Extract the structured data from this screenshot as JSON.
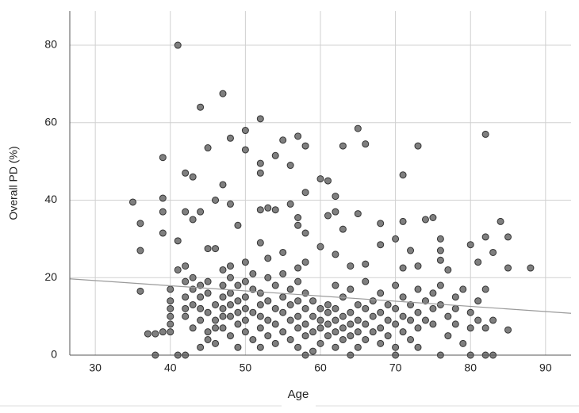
{
  "chart_data": {
    "type": "scatter",
    "x_label": "Age",
    "y_label": "Overall PD (%)",
    "color": "#7f7f7f",
    "edge_color": "#333333",
    "grid": true,
    "xlim": [
      26.6,
      93.4
    ],
    "ylim": [
      0,
      88.8
    ],
    "xticks": [
      30,
      40,
      50,
      60,
      70,
      80,
      90
    ],
    "yticks": [
      0,
      20,
      40,
      60,
      80
    ],
    "fit_line": {
      "color": "#9a9a9a",
      "x": [
        26.6,
        93.4
      ],
      "y": [
        19.7,
        10.8
      ]
    },
    "x": [
      41,
      47,
      44,
      52,
      50,
      65,
      82,
      57,
      48,
      55,
      45,
      50,
      58,
      63,
      66,
      73,
      54,
      39,
      52,
      56,
      42,
      43,
      52,
      71,
      60,
      61,
      47,
      58,
      62,
      39,
      46,
      35,
      48,
      56,
      53,
      54,
      52,
      42,
      39,
      44,
      62,
      65,
      61,
      57,
      74,
      75,
      43,
      84,
      36,
      68,
      71,
      49,
      57,
      63,
      58,
      39,
      85,
      70,
      76,
      82,
      41,
      52,
      80,
      45,
      60,
      68,
      36,
      46,
      72,
      76,
      55,
      83,
      62,
      41,
      42,
      48,
      50,
      58,
      53,
      57,
      88,
      85,
      71,
      81,
      77,
      76,
      64,
      66,
      73,
      36,
      40,
      40,
      40,
      40,
      40,
      40,
      38,
      37,
      39,
      38,
      41,
      42,
      42,
      42,
      42,
      42,
      43,
      43,
      43,
      43,
      44,
      44,
      44,
      44,
      44,
      45,
      45,
      45,
      45,
      45,
      46,
      46,
      46,
      46,
      47,
      47,
      47,
      47,
      47,
      47,
      48,
      48,
      48,
      48,
      48,
      49,
      49,
      49,
      49,
      49,
      50,
      50,
      50,
      50,
      50,
      51,
      51,
      51,
      51,
      52,
      52,
      52,
      52,
      52,
      53,
      53,
      53,
      53,
      54,
      54,
      54,
      54,
      55,
      55,
      55,
      55,
      56,
      56,
      56,
      56,
      57,
      57,
      57,
      57,
      57,
      58,
      58,
      58,
      58,
      58,
      59,
      59,
      59,
      59,
      60,
      60,
      60,
      60,
      61,
      61,
      61,
      61,
      62,
      62,
      62,
      62,
      62,
      63,
      63,
      63,
      63,
      64,
      64,
      64,
      64,
      64,
      65,
      65,
      65,
      65,
      66,
      66,
      66,
      66,
      67,
      67,
      67,
      68,
      68,
      68,
      68,
      69,
      69,
      69,
      70,
      70,
      70,
      70,
      70,
      71,
      71,
      71,
      72,
      72,
      72,
      73,
      73,
      73,
      73,
      74,
      74,
      75,
      75,
      75,
      76,
      76,
      76,
      77,
      77,
      78,
      78,
      78,
      79,
      79,
      80,
      80,
      80,
      81,
      81,
      82,
      82,
      82,
      83,
      83,
      85
    ],
    "values": [
      80,
      67.5,
      64,
      61,
      58,
      58.5,
      57,
      56.5,
      56,
      55.5,
      53.5,
      53,
      54,
      54,
      54.5,
      54,
      51.5,
      51,
      49.5,
      49,
      47,
      46,
      47,
      46.5,
      45.5,
      45,
      44,
      42,
      41,
      40.5,
      40,
      39.5,
      39,
      39,
      38,
      37.5,
      37.5,
      37,
      37,
      37,
      37,
      36.5,
      36,
      35.5,
      35,
      35.5,
      35,
      34.5,
      34,
      34,
      34.5,
      33.5,
      33.5,
      32.5,
      31.5,
      31.5,
      30.5,
      30,
      30,
      30.5,
      29.5,
      29,
      28.5,
      27.5,
      28,
      28.5,
      27,
      27.5,
      27,
      27,
      26.5,
      26.5,
      26,
      22,
      23,
      23,
      24,
      24,
      25,
      22.5,
      22.5,
      22.5,
      22.5,
      24,
      22,
      24.5,
      23,
      23.5,
      23,
      16.5,
      17,
      14,
      12,
      10,
      8,
      6,
      5.5,
      5.5,
      6,
      0,
      0,
      0,
      19,
      15,
      12,
      10,
      20,
      17,
      13,
      7,
      18,
      15,
      12,
      9,
      2,
      19,
      16,
      11,
      6,
      4,
      13,
      9,
      7,
      3,
      22,
      18,
      15,
      12,
      10,
      7,
      20,
      16,
      13,
      10,
      5,
      18,
      14,
      11,
      8,
      2,
      19,
      15,
      12,
      9,
      6,
      21,
      17,
      11,
      4,
      16,
      13,
      10,
      7,
      2,
      20,
      14,
      9,
      5,
      18,
      12,
      8,
      3,
      21,
      15,
      11,
      6,
      17,
      13,
      9,
      4,
      19,
      14,
      10,
      7,
      2,
      16,
      12,
      8,
      5,
      0,
      14,
      10,
      6,
      1,
      12,
      9,
      7,
      3,
      11,
      8,
      5,
      13,
      18,
      12,
      9,
      6,
      2,
      15,
      10,
      7,
      4,
      17,
      11,
      8,
      5,
      0,
      13,
      9,
      6,
      2,
      19,
      12,
      8,
      4,
      14,
      10,
      6,
      16,
      11,
      7,
      3,
      13,
      9,
      5,
      18,
      12,
      8,
      2,
      0,
      15,
      10,
      6,
      13,
      9,
      4,
      17,
      11,
      7,
      2,
      14,
      9,
      12,
      16,
      8,
      18,
      13,
      0,
      10,
      5,
      15,
      12,
      8,
      3,
      17,
      11,
      7,
      0,
      14,
      9,
      17,
      7,
      0,
      0,
      9,
      6.5
    ]
  }
}
